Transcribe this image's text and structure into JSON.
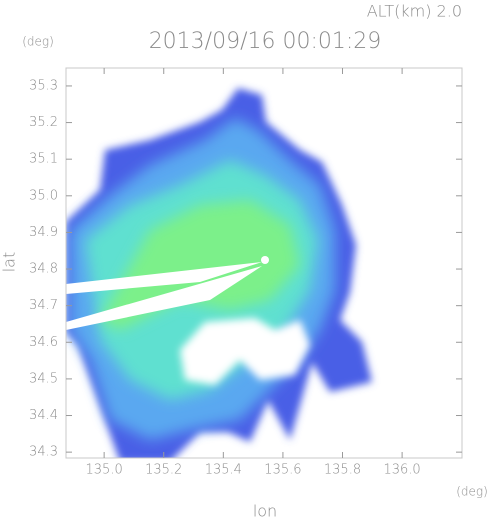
{
  "chart_data": {
    "type": "radar_map",
    "title": "2013/09/16 00:01:29",
    "altitude_label": "ALT(km) 2.0",
    "x_label": "lon",
    "y_label": "lat",
    "x_unit": "(deg)",
    "y_unit": "(deg)",
    "xlim": [
      134.872,
      136.201
    ],
    "ylim": [
      34.284,
      35.349
    ],
    "xticks": [
      {
        "value": 135,
        "label": "135.0"
      },
      135.2,
      135.4,
      135.6,
      135.8,
      {
        "value": 136,
        "label": "136.0"
      }
    ],
    "yticks": [
      34.3,
      34.4,
      34.5,
      34.6,
      34.7,
      34.8,
      34.9,
      {
        "value": 35,
        "label": "35.0"
      },
      35.1,
      35.2,
      35.3
    ]
  }
}
